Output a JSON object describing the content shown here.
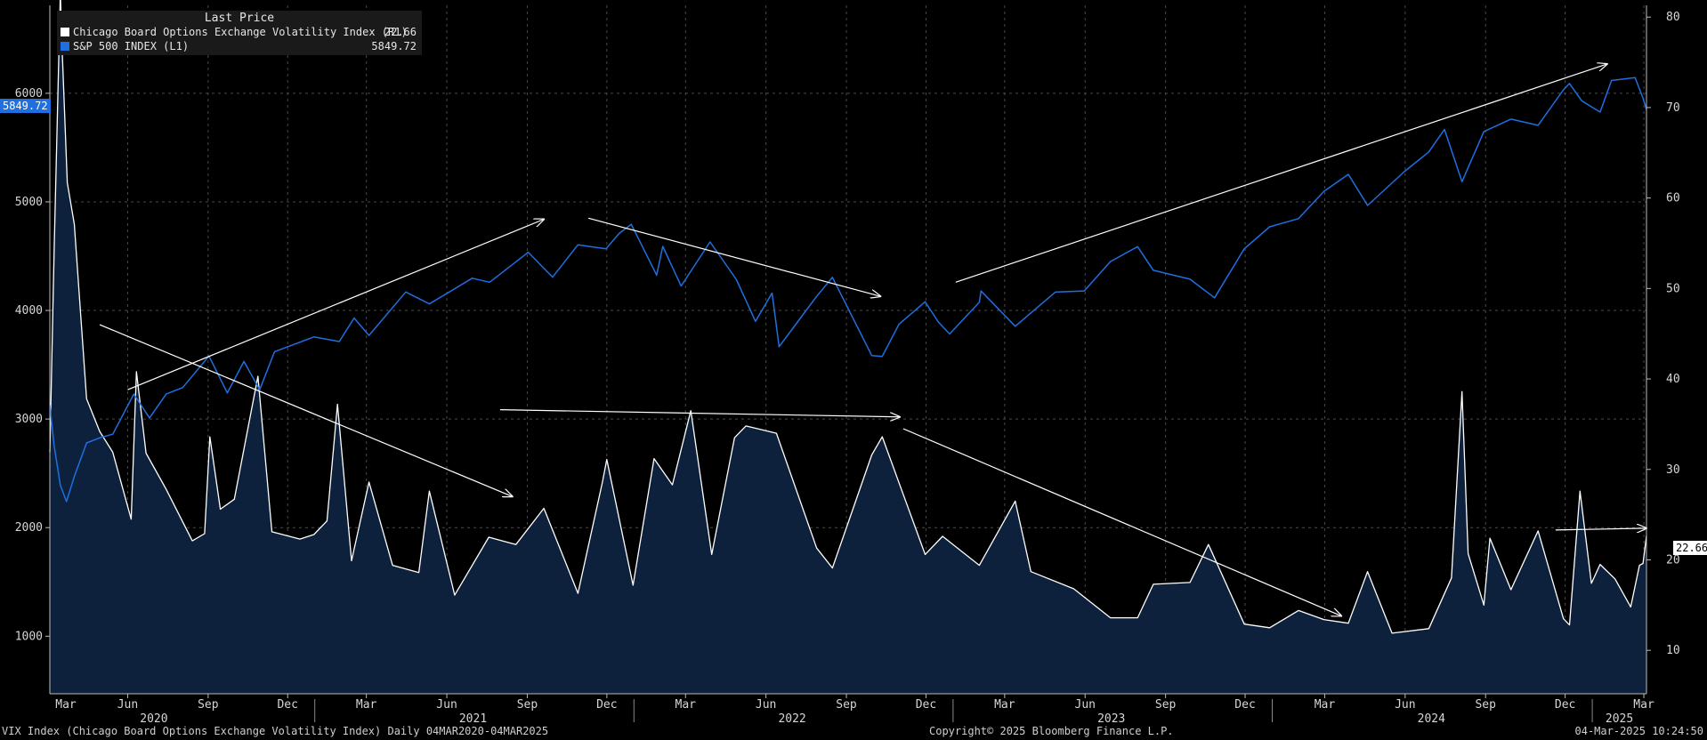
{
  "legend": {
    "header": "Last Price",
    "series": [
      {
        "name": "Chicago Board Options Exchange Volatility Index  (R1)",
        "value": "22.66",
        "color": "#ffffff"
      },
      {
        "name": "S&P 500 INDEX  (L1)",
        "value": "5849.72",
        "color": "#1f6fe0"
      }
    ]
  },
  "footer": {
    "left": "VIX Index (Chicago Board Options Exchange Volatility Index)  Daily 04MAR2020-04MAR2025",
    "center": "Copyright© 2025 Bloomberg Finance L.P.",
    "right": "04-Mar-2025 10:24:50"
  },
  "last_value_tags": {
    "left": "5849.72",
    "right": "22.66"
  },
  "chart_data": {
    "type": "line",
    "x_range": [
      "2020-03-04",
      "2025-03-04"
    ],
    "x_tick_labels": [
      "Mar",
      "Jun",
      "Sep",
      "Dec",
      "Mar",
      "Jun",
      "Sep",
      "Dec",
      "Mar",
      "Jun",
      "Sep",
      "Dec",
      "Mar",
      "Jun",
      "Sep",
      "Dec",
      "Mar",
      "Jun",
      "Sep",
      "Dec",
      "Mar"
    ],
    "x_tick_dates": [
      "2020-03-01",
      "2020-06-01",
      "2020-09-01",
      "2020-12-01",
      "2021-03-01",
      "2021-06-01",
      "2021-09-01",
      "2021-12-01",
      "2022-03-01",
      "2022-06-01",
      "2022-09-01",
      "2022-12-01",
      "2023-03-01",
      "2023-06-01",
      "2023-09-01",
      "2023-12-01",
      "2024-03-01",
      "2024-06-01",
      "2024-09-01",
      "2024-12-01",
      "2025-03-01"
    ],
    "x_year_labels": [
      {
        "label": "2020",
        "date": "2020-07-01"
      },
      {
        "label": "2021",
        "date": "2021-07-01"
      },
      {
        "label": "2022",
        "date": "2022-07-01"
      },
      {
        "label": "2023",
        "date": "2023-07-01"
      },
      {
        "label": "2024",
        "date": "2024-07-01"
      },
      {
        "label": "2025",
        "date": "2025-02-01"
      }
    ],
    "left_axis": {
      "ticks": [
        1000,
        2000,
        3000,
        4000,
        5000,
        6000
      ],
      "range": [
        470,
        6810
      ]
    },
    "right_axis": {
      "ticks": [
        10,
        20,
        30,
        40,
        50,
        60,
        70,
        80
      ],
      "range": [
        5.2,
        81.3
      ]
    },
    "series": [
      {
        "name": "S&P 500 INDEX  (L1)",
        "axis": "left",
        "style": "line",
        "color": "#1f6fe0",
        "points": [
          [
            "2020-03-04",
            3130
          ],
          [
            "2020-03-09",
            2750
          ],
          [
            "2020-03-16",
            2390
          ],
          [
            "2020-03-23",
            2240
          ],
          [
            "2020-04-01",
            2470
          ],
          [
            "2020-04-15",
            2780
          ],
          [
            "2020-05-01",
            2830
          ],
          [
            "2020-05-15",
            2860
          ],
          [
            "2020-06-08",
            3230
          ],
          [
            "2020-06-26",
            3010
          ],
          [
            "2020-07-15",
            3230
          ],
          [
            "2020-08-03",
            3290
          ],
          [
            "2020-09-02",
            3580
          ],
          [
            "2020-09-23",
            3240
          ],
          [
            "2020-10-12",
            3530
          ],
          [
            "2020-10-30",
            3270
          ],
          [
            "2020-11-16",
            3620
          ],
          [
            "2020-12-31",
            3756
          ],
          [
            "2021-01-29",
            3714
          ],
          [
            "2021-02-15",
            3930
          ],
          [
            "2021-03-04",
            3770
          ],
          [
            "2021-04-15",
            4170
          ],
          [
            "2021-05-12",
            4060
          ],
          [
            "2021-06-30",
            4297
          ],
          [
            "2021-07-20",
            4260
          ],
          [
            "2021-08-31",
            4522
          ],
          [
            "2021-09-02",
            4537
          ],
          [
            "2021-09-30",
            4307
          ],
          [
            "2021-10-29",
            4605
          ],
          [
            "2021-11-30",
            4567
          ],
          [
            "2021-12-15",
            4709
          ],
          [
            "2021-12-29",
            4793
          ],
          [
            "2022-01-27",
            4326
          ],
          [
            "2022-02-03",
            4590
          ],
          [
            "2022-02-24",
            4225
          ],
          [
            "2022-03-29",
            4631
          ],
          [
            "2022-04-28",
            4287
          ],
          [
            "2022-05-20",
            3900
          ],
          [
            "2022-06-08",
            4160
          ],
          [
            "2022-06-16",
            3666
          ],
          [
            "2022-07-29",
            4130
          ],
          [
            "2022-08-16",
            4305
          ],
          [
            "2022-09-30",
            3585
          ],
          [
            "2022-10-12",
            3577
          ],
          [
            "2022-10-31",
            3872
          ],
          [
            "2022-11-30",
            4080
          ],
          [
            "2022-12-15",
            3895
          ],
          [
            "2022-12-28",
            3783
          ],
          [
            "2023-01-31",
            4077
          ],
          [
            "2023-02-02",
            4179
          ],
          [
            "2023-03-13",
            3855
          ],
          [
            "2023-04-28",
            4169
          ],
          [
            "2023-05-31",
            4180
          ],
          [
            "2023-06-30",
            4450
          ],
          [
            "2023-07-31",
            4588
          ],
          [
            "2023-08-18",
            4370
          ],
          [
            "2023-09-29",
            4288
          ],
          [
            "2023-10-27",
            4117
          ],
          [
            "2023-11-30",
            4568
          ],
          [
            "2023-12-29",
            4770
          ],
          [
            "2024-01-31",
            4846
          ],
          [
            "2024-02-29",
            5096
          ],
          [
            "2024-03-28",
            5254
          ],
          [
            "2024-04-19",
            4967
          ],
          [
            "2024-05-31",
            5278
          ],
          [
            "2024-06-28",
            5460
          ],
          [
            "2024-07-16",
            5667
          ],
          [
            "2024-08-05",
            5186
          ],
          [
            "2024-08-30",
            5648
          ],
          [
            "2024-09-30",
            5762
          ],
          [
            "2024-10-31",
            5705
          ],
          [
            "2024-11-29",
            6032
          ],
          [
            "2024-12-06",
            6090
          ],
          [
            "2024-12-20",
            5930
          ],
          [
            "2025-01-10",
            5827
          ],
          [
            "2025-01-23",
            6118
          ],
          [
            "2025-02-19",
            6144
          ],
          [
            "2025-02-28",
            5955
          ],
          [
            "2025-03-04",
            5849.72
          ]
        ]
      },
      {
        "name": "Chicago Board Options Exchange Volatility Index  (R1)",
        "axis": "right",
        "style": "area",
        "color": "#ffffff",
        "fill": "#0d213d",
        "points": [
          [
            "2020-03-04",
            31.9
          ],
          [
            "2020-03-09",
            54.5
          ],
          [
            "2020-03-16",
            82.7
          ],
          [
            "2020-03-18",
            76.5
          ],
          [
            "2020-03-24",
            61.7
          ],
          [
            "2020-04-01",
            57.1
          ],
          [
            "2020-04-15",
            37.8
          ],
          [
            "2020-04-30",
            34.2
          ],
          [
            "2020-05-15",
            31.9
          ],
          [
            "2020-06-05",
            24.5
          ],
          [
            "2020-06-11",
            40.8
          ],
          [
            "2020-06-22",
            31.8
          ],
          [
            "2020-07-15",
            27.8
          ],
          [
            "2020-08-14",
            22.1
          ],
          [
            "2020-08-28",
            22.9
          ],
          [
            "2020-09-03",
            33.6
          ],
          [
            "2020-09-15",
            25.6
          ],
          [
            "2020-10-01",
            26.7
          ],
          [
            "2020-10-28",
            40.3
          ],
          [
            "2020-11-13",
            23.1
          ],
          [
            "2020-12-15",
            22.3
          ],
          [
            "2020-12-31",
            22.8
          ],
          [
            "2021-01-15",
            24.3
          ],
          [
            "2021-01-27",
            37.2
          ],
          [
            "2021-02-12",
            19.9
          ],
          [
            "2021-03-04",
            28.6
          ],
          [
            "2021-03-31",
            19.4
          ],
          [
            "2021-04-30",
            18.6
          ],
          [
            "2021-05-12",
            27.6
          ],
          [
            "2021-06-10",
            16.1
          ],
          [
            "2021-07-19",
            22.5
          ],
          [
            "2021-08-19",
            21.7
          ],
          [
            "2021-09-20",
            25.7
          ],
          [
            "2021-10-29",
            16.3
          ],
          [
            "2021-11-26",
            28.6
          ],
          [
            "2021-12-01",
            31.1
          ],
          [
            "2021-12-31",
            17.2
          ],
          [
            "2022-01-24",
            31.2
          ],
          [
            "2022-02-14",
            28.3
          ],
          [
            "2022-03-07",
            36.5
          ],
          [
            "2022-03-31",
            20.6
          ],
          [
            "2022-04-26",
            33.5
          ],
          [
            "2022-05-09",
            34.8
          ],
          [
            "2022-06-13",
            34.0
          ],
          [
            "2022-07-29",
            21.3
          ],
          [
            "2022-08-16",
            19.1
          ],
          [
            "2022-09-30",
            31.6
          ],
          [
            "2022-10-12",
            33.6
          ],
          [
            "2022-11-30",
            20.6
          ],
          [
            "2022-12-20",
            22.6
          ],
          [
            "2023-01-31",
            19.4
          ],
          [
            "2023-03-13",
            26.5
          ],
          [
            "2023-03-31",
            18.7
          ],
          [
            "2023-05-19",
            16.8
          ],
          [
            "2023-06-30",
            13.6
          ],
          [
            "2023-07-31",
            13.6
          ],
          [
            "2023-08-18",
            17.3
          ],
          [
            "2023-09-29",
            17.5
          ],
          [
            "2023-10-20",
            21.7
          ],
          [
            "2023-11-30",
            12.9
          ],
          [
            "2023-12-29",
            12.5
          ],
          [
            "2024-01-31",
            14.4
          ],
          [
            "2024-02-29",
            13.4
          ],
          [
            "2024-03-28",
            13.0
          ],
          [
            "2024-04-19",
            18.7
          ],
          [
            "2024-05-17",
            11.9
          ],
          [
            "2024-06-28",
            12.4
          ],
          [
            "2024-07-24",
            18.0
          ],
          [
            "2024-08-05",
            38.6
          ],
          [
            "2024-08-12",
            20.7
          ],
          [
            "2024-08-30",
            15.0
          ],
          [
            "2024-09-06",
            22.4
          ],
          [
            "2024-09-30",
            16.7
          ],
          [
            "2024-10-31",
            23.2
          ],
          [
            "2024-11-29",
            13.5
          ],
          [
            "2024-12-06",
            12.8
          ],
          [
            "2024-12-18",
            27.6
          ],
          [
            "2024-12-31",
            17.4
          ],
          [
            "2025-01-10",
            19.5
          ],
          [
            "2025-01-27",
            17.9
          ],
          [
            "2025-02-14",
            14.8
          ],
          [
            "2025-02-24",
            19.4
          ],
          [
            "2025-02-28",
            19.6
          ],
          [
            "2025-03-04",
            22.66
          ]
        ]
      }
    ],
    "annotations": {
      "left_axis_trend_arrows": [
        [
          [
            "2020-06-01",
            3270
          ],
          [
            "2021-09-20",
            4840
          ]
        ],
        [
          [
            "2021-11-10",
            4850
          ],
          [
            "2022-10-10",
            4130
          ]
        ],
        [
          [
            "2023-01-04",
            4260
          ],
          [
            "2025-01-18",
            6270
          ]
        ]
      ],
      "right_axis_trend_arrows": [
        [
          [
            "2020-04-30",
            46.0
          ],
          [
            "2021-08-15",
            27.0
          ]
        ],
        [
          [
            "2021-08-01",
            36.6
          ],
          [
            "2022-11-01",
            35.8
          ]
        ],
        [
          [
            "2022-11-05",
            34.5
          ],
          [
            "2024-03-20",
            13.8
          ]
        ],
        [
          [
            "2024-11-20",
            23.3
          ],
          [
            "2025-03-04",
            23.5
          ]
        ]
      ]
    },
    "grid": true
  }
}
